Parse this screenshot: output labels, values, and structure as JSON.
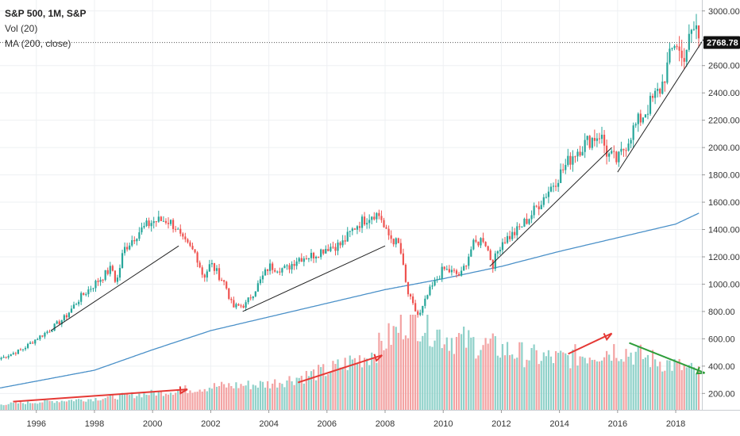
{
  "legend": {
    "title": "S&P 500, 1M, S&P",
    "volume": "Vol (20)",
    "ma": "MA (200, close)"
  },
  "colors": {
    "up": "#26a69a",
    "down": "#ef5350",
    "up_vol": "#8fd1c9",
    "down_vol": "#f3a3a3",
    "ma": "#4a90c8",
    "trendline": "#222222",
    "arrow_red": "#e53935",
    "arrow_green": "#2e9e3a",
    "grid": "#eef0f3",
    "price_box": "#111111"
  },
  "current_price": "2768.78",
  "chart_data": {
    "type": "candlestick",
    "title": "S&P 500, 1M, S&P",
    "x_ticks": [
      "1996",
      "1998",
      "2000",
      "2002",
      "2004",
      "2006",
      "2008",
      "2010",
      "2012",
      "2014",
      "2016",
      "2018"
    ],
    "y_ticks": [
      "200.00",
      "400.00",
      "600.00",
      "800.00",
      "1000.00",
      "1200.00",
      "1400.00",
      "1600.00",
      "1800.00",
      "2000.00",
      "2200.00",
      "2400.00",
      "2600.00",
      "3000.00"
    ],
    "ylim": [
      80,
      3080
    ],
    "xlim": [
      1994.75,
      2018.9
    ],
    "current_price": 2768.78,
    "price_anchors": [
      {
        "t": 1994.8,
        "v": 460
      },
      {
        "t": 1995.5,
        "v": 520
      },
      {
        "t": 1996.0,
        "v": 600
      },
      {
        "t": 1996.5,
        "v": 670
      },
      {
        "t": 1997.0,
        "v": 760
      },
      {
        "t": 1997.5,
        "v": 900
      },
      {
        "t": 1998.0,
        "v": 1000
      },
      {
        "t": 1998.6,
        "v": 1120
      },
      {
        "t": 1998.75,
        "v": 1000
      },
      {
        "t": 1999.0,
        "v": 1250
      },
      {
        "t": 1999.5,
        "v": 1380
      },
      {
        "t": 2000.0,
        "v": 1460
      },
      {
        "t": 2000.5,
        "v": 1470
      },
      {
        "t": 2000.8,
        "v": 1420
      },
      {
        "t": 2001.0,
        "v": 1320
      },
      {
        "t": 2001.5,
        "v": 1220
      },
      {
        "t": 2001.75,
        "v": 1050
      },
      {
        "t": 2002.0,
        "v": 1150
      },
      {
        "t": 2002.5,
        "v": 1000
      },
      {
        "t": 2002.75,
        "v": 830
      },
      {
        "t": 2003.2,
        "v": 850
      },
      {
        "t": 2003.7,
        "v": 1020
      },
      {
        "t": 2004.0,
        "v": 1130
      },
      {
        "t": 2004.6,
        "v": 1110
      },
      {
        "t": 2005.0,
        "v": 1190
      },
      {
        "t": 2005.5,
        "v": 1210
      },
      {
        "t": 2006.0,
        "v": 1270
      },
      {
        "t": 2006.5,
        "v": 1290
      },
      {
        "t": 2007.0,
        "v": 1430
      },
      {
        "t": 2007.6,
        "v": 1520
      },
      {
        "t": 2007.85,
        "v": 1500
      },
      {
        "t": 2008.0,
        "v": 1380
      },
      {
        "t": 2008.5,
        "v": 1280
      },
      {
        "t": 2008.75,
        "v": 950
      },
      {
        "t": 2009.0,
        "v": 820
      },
      {
        "t": 2009.17,
        "v": 760
      },
      {
        "t": 2009.5,
        "v": 940
      },
      {
        "t": 2010.0,
        "v": 1110
      },
      {
        "t": 2010.4,
        "v": 1080
      },
      {
        "t": 2010.6,
        "v": 1060
      },
      {
        "t": 2011.0,
        "v": 1280
      },
      {
        "t": 2011.4,
        "v": 1340
      },
      {
        "t": 2011.7,
        "v": 1140
      },
      {
        "t": 2012.0,
        "v": 1310
      },
      {
        "t": 2012.5,
        "v": 1380
      },
      {
        "t": 2013.0,
        "v": 1500
      },
      {
        "t": 2013.5,
        "v": 1650
      },
      {
        "t": 2014.0,
        "v": 1800
      },
      {
        "t": 2014.5,
        "v": 1960
      },
      {
        "t": 2015.0,
        "v": 2050
      },
      {
        "t": 2015.4,
        "v": 2100
      },
      {
        "t": 2015.65,
        "v": 1950
      },
      {
        "t": 2016.0,
        "v": 1900
      },
      {
        "t": 2016.5,
        "v": 2120
      },
      {
        "t": 2017.0,
        "v": 2280
      },
      {
        "t": 2017.5,
        "v": 2440
      },
      {
        "t": 2018.0,
        "v": 2800
      },
      {
        "t": 2018.2,
        "v": 2640
      },
      {
        "t": 2018.5,
        "v": 2800
      },
      {
        "t": 2018.7,
        "v": 2900
      },
      {
        "t": 2018.8,
        "v": 2770
      }
    ],
    "ma_anchors": [
      {
        "t": 1994.75,
        "v": 240
      },
      {
        "t": 1998.0,
        "v": 370
      },
      {
        "t": 2000.0,
        "v": 520
      },
      {
        "t": 2002.0,
        "v": 660
      },
      {
        "t": 2004.0,
        "v": 760
      },
      {
        "t": 2006.0,
        "v": 860
      },
      {
        "t": 2008.0,
        "v": 960
      },
      {
        "t": 2010.0,
        "v": 1040
      },
      {
        "t": 2012.0,
        "v": 1130
      },
      {
        "t": 2014.0,
        "v": 1240
      },
      {
        "t": 2016.0,
        "v": 1340
      },
      {
        "t": 2018.0,
        "v": 1440
      },
      {
        "t": 2018.8,
        "v": 1520
      }
    ],
    "volume_anchors": [
      {
        "t": 1994.75,
        "v": 0.06
      },
      {
        "t": 1998.0,
        "v": 0.12
      },
      {
        "t": 2000.0,
        "v": 0.18
      },
      {
        "t": 2002.0,
        "v": 0.25
      },
      {
        "t": 2004.0,
        "v": 0.28
      },
      {
        "t": 2006.0,
        "v": 0.42
      },
      {
        "t": 2007.5,
        "v": 0.6
      },
      {
        "t": 2008.4,
        "v": 0.85
      },
      {
        "t": 2008.8,
        "v": 1.0
      },
      {
        "t": 2009.2,
        "v": 0.95
      },
      {
        "t": 2010.0,
        "v": 0.8
      },
      {
        "t": 2011.0,
        "v": 0.72
      },
      {
        "t": 2012.0,
        "v": 0.66
      },
      {
        "t": 2013.0,
        "v": 0.58
      },
      {
        "t": 2014.0,
        "v": 0.55
      },
      {
        "t": 2015.0,
        "v": 0.6
      },
      {
        "t": 2016.0,
        "v": 0.66
      },
      {
        "t": 2017.0,
        "v": 0.56
      },
      {
        "t": 2018.0,
        "v": 0.48
      },
      {
        "t": 2018.8,
        "v": 0.4
      }
    ],
    "trendlines": [
      {
        "t1": 1996.5,
        "v1": 660,
        "t2": 2000.9,
        "v2": 1280
      },
      {
        "t1": 2003.1,
        "v1": 800,
        "t2": 2008.0,
        "v2": 1280
      },
      {
        "t1": 2011.6,
        "v1": 1130,
        "t2": 2015.8,
        "v2": 2000
      },
      {
        "t1": 2016.0,
        "v1": 1820,
        "t2": 2018.95,
        "v2": 2790
      }
    ],
    "arrows": [
      {
        "t1": 1995.2,
        "v1": 140,
        "t2": 2001.2,
        "v2": 230,
        "color": "red"
      },
      {
        "t1": 2005.0,
        "v1": 280,
        "t2": 2007.9,
        "v2": 480,
        "color": "red"
      },
      {
        "t1": 2014.3,
        "v1": 490,
        "t2": 2015.8,
        "v2": 640,
        "color": "red"
      },
      {
        "t1": 2016.4,
        "v1": 570,
        "t2": 2019.0,
        "v2": 350,
        "color": "green"
      }
    ]
  }
}
